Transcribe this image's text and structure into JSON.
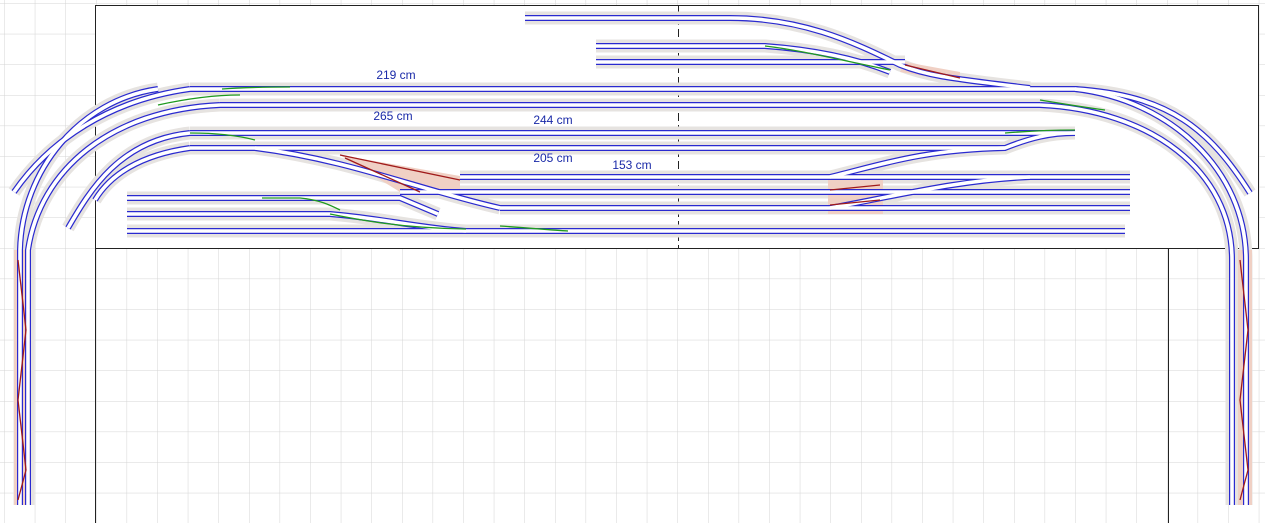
{
  "labels": [
    "219 cm",
    "265 cm",
    "244 cm",
    "205 cm",
    "153 cm"
  ]
}
